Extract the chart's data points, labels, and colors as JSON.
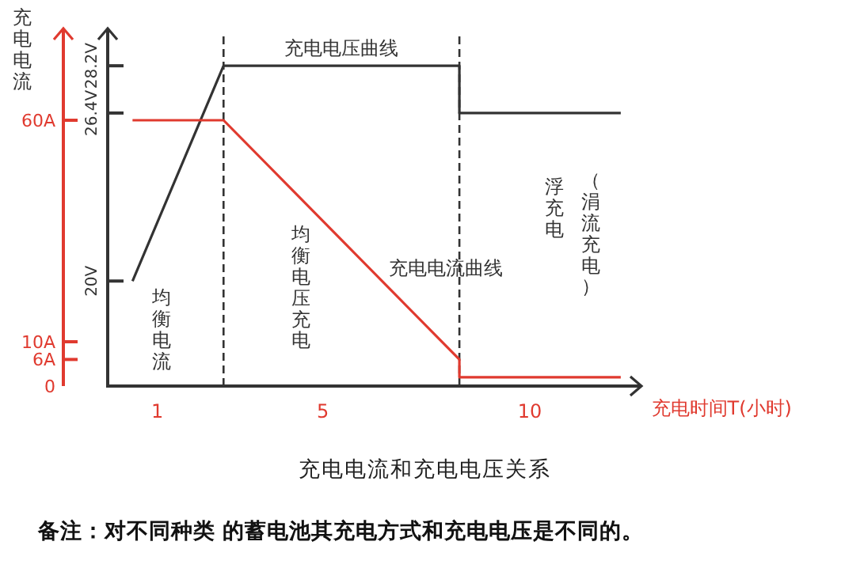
{
  "chart_data": {
    "type": "line",
    "title": "充电电流和充电电压关系",
    "ylabel": "充电电流",
    "xlabel": "充电时间T(小时)",
    "annotations": [
      "均衡电流",
      "均衡电压充电",
      "浮充电",
      "（涓流充电）",
      "备注：对不同种类 的蓄电池其充电方式和充电电压是不同的。"
    ],
    "xlim": [
      -0.2,
      12.7
    ],
    "xticks": [
      1,
      5,
      10
    ],
    "ylim": [
      0,
      80
    ],
    "yticks": [
      0,
      {
        "value": 6,
        "label": "6A"
      },
      {
        "value": 10,
        "label": "10A"
      },
      {
        "value": 60,
        "label": "60A"
      }
    ],
    "y2lim": [
      16,
      29.5
    ],
    "y2ticks": [
      {
        "value": 20,
        "label": "20V"
      },
      {
        "value": 26.4,
        "label": "26.4V"
      },
      {
        "value": 28.2,
        "label": "28.2V"
      }
    ],
    "series": [
      {
        "name": "充电电压曲线",
        "color": "#333333",
        "axis": "y2",
        "x": [
          0.4,
          2.6,
          8.3,
          8.3,
          12.2
        ],
        "values": [
          20,
          28.2,
          28.2,
          26.4,
          26.4
        ]
      },
      {
        "name": "充电电流曲线",
        "color": "#e03a2f",
        "x": [
          0.4,
          2.6,
          8.3,
          8.3,
          12.2
        ],
        "values": [
          60,
          60,
          6,
          2,
          2
        ]
      }
    ],
    "ref_lines": [
      {
        "axis": "x",
        "value": 2.6,
        "line_style": "dashed",
        "color": "#333333"
      },
      {
        "axis": "x",
        "value": 8.3,
        "line_style": "dashed",
        "color": "#333333"
      }
    ]
  }
}
